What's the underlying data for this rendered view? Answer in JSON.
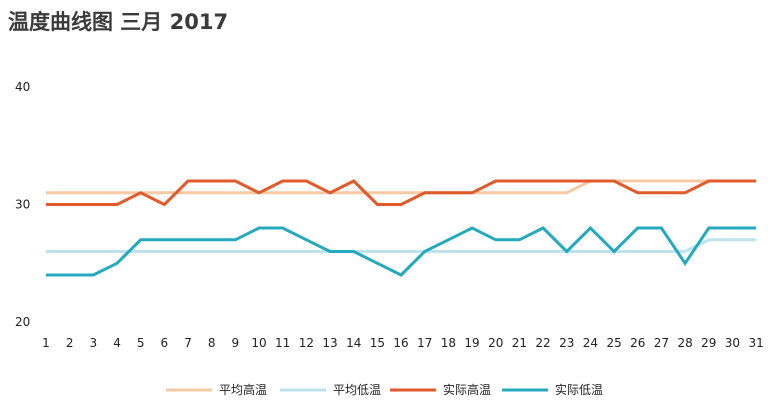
{
  "chart_data": {
    "type": "line",
    "title": "温度曲线图 三月 2017",
    "xlabel": "",
    "ylabel": "",
    "ylim": [
      20,
      40
    ],
    "yticks": [
      20,
      30,
      40
    ],
    "categories": [
      "1",
      "2",
      "3",
      "4",
      "5",
      "6",
      "7",
      "8",
      "9",
      "10",
      "11",
      "12",
      "13",
      "14",
      "15",
      "16",
      "17",
      "18",
      "19",
      "20",
      "21",
      "22",
      "23",
      "24",
      "25",
      "26",
      "27",
      "28",
      "29",
      "30",
      "31"
    ],
    "legend_position": "bottom",
    "series": [
      {
        "name": "平均高温",
        "color": "#f8c9a3",
        "values": [
          31,
          31,
          31,
          31,
          31,
          31,
          31,
          31,
          31,
          31,
          31,
          31,
          31,
          31,
          31,
          31,
          31,
          31,
          31,
          31,
          31,
          31,
          31,
          32,
          32,
          32,
          32,
          32,
          32,
          32,
          32
        ]
      },
      {
        "name": "平均低温",
        "color": "#bfe3ec",
        "values": [
          26,
          26,
          26,
          26,
          26,
          26,
          26,
          26,
          26,
          26,
          26,
          26,
          26,
          26,
          26,
          26,
          26,
          26,
          26,
          26,
          26,
          26,
          26,
          26,
          26,
          26,
          26,
          26,
          27,
          27,
          27
        ]
      },
      {
        "name": "实际高温",
        "color": "#e05a2b",
        "values": [
          30,
          30,
          30,
          30,
          31,
          30,
          32,
          32,
          32,
          31,
          32,
          32,
          31,
          32,
          30,
          30,
          31,
          31,
          31,
          32,
          32,
          32,
          32,
          32,
          32,
          31,
          31,
          31,
          32,
          32,
          32
        ]
      },
      {
        "name": "实际低温",
        "color": "#26a8bf",
        "values": [
          24,
          24,
          24,
          25,
          27,
          27,
          27,
          27,
          27,
          28,
          28,
          27,
          26,
          26,
          25,
          24,
          26,
          27,
          28,
          27,
          27,
          28,
          26,
          28,
          26,
          28,
          28,
          25,
          28,
          28,
          28
        ]
      }
    ]
  }
}
